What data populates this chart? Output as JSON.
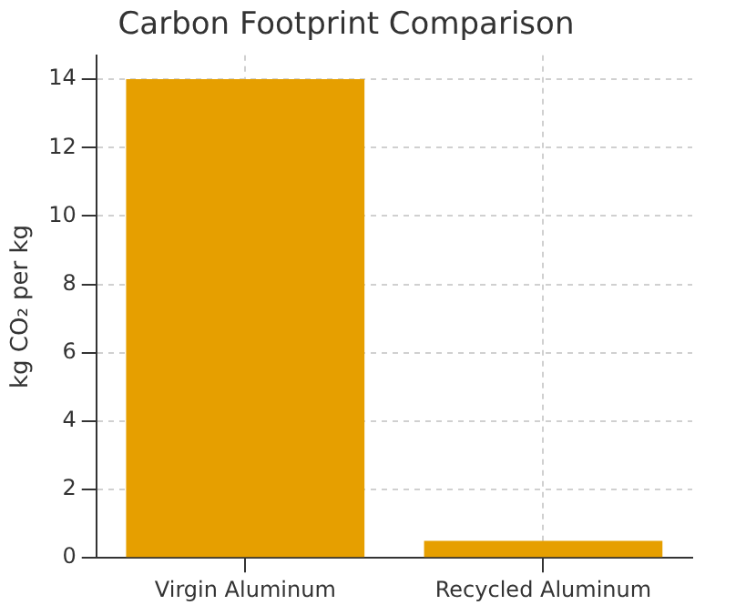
{
  "chart_data": {
    "type": "bar",
    "title": "Carbon Footprint Comparison",
    "ylabel": "kg CO₂ per kg",
    "categories": [
      "Virgin Aluminum",
      "Recycled Aluminum"
    ],
    "values": [
      14,
      0.5
    ],
    "color": "#e69f00",
    "ylim": [
      0,
      14.7
    ],
    "yticks": [
      0,
      2,
      4,
      6,
      8,
      10,
      12,
      14
    ],
    "grid": true,
    "legend": false
  }
}
